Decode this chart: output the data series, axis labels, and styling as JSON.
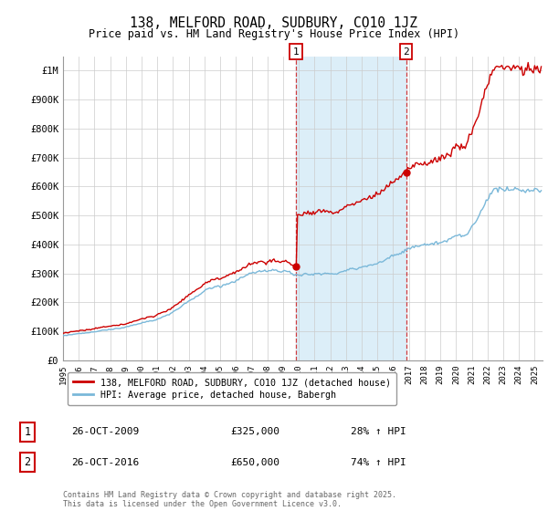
{
  "title": "138, MELFORD ROAD, SUDBURY, CO10 1JZ",
  "subtitle": "Price paid vs. HM Land Registry's House Price Index (HPI)",
  "ylabel_ticks": [
    "£0",
    "£100K",
    "£200K",
    "£300K",
    "£400K",
    "£500K",
    "£600K",
    "£700K",
    "£800K",
    "£900K",
    "£1M"
  ],
  "ytick_values": [
    0,
    100000,
    200000,
    300000,
    400000,
    500000,
    600000,
    700000,
    800000,
    900000,
    1000000
  ],
  "ylim": [
    0,
    1050000
  ],
  "xlim_start": 1995.0,
  "xlim_end": 2025.5,
  "grid_color": "#cccccc",
  "red_line_color": "#cc0000",
  "blue_line_color": "#7ab8d9",
  "shade_color": "#dceef8",
  "sale1_x": 2009.82,
  "sale1_y": 325000,
  "sale2_x": 2016.82,
  "sale2_y": 650000,
  "legend_line1": "138, MELFORD ROAD, SUDBURY, CO10 1JZ (detached house)",
  "legend_line2": "HPI: Average price, detached house, Babergh",
  "annotation1_date": "26-OCT-2009",
  "annotation1_price": "£325,000",
  "annotation1_hpi": "28% ↑ HPI",
  "annotation2_date": "26-OCT-2016",
  "annotation2_price": "£650,000",
  "annotation2_hpi": "74% ↑ HPI",
  "footnote": "Contains HM Land Registry data © Crown copyright and database right 2025.\nThis data is licensed under the Open Government Licence v3.0.",
  "xtick_years": [
    1995,
    1996,
    1997,
    1998,
    1999,
    2000,
    2001,
    2002,
    2003,
    2004,
    2005,
    2006,
    2007,
    2008,
    2009,
    2010,
    2011,
    2012,
    2013,
    2014,
    2015,
    2016,
    2017,
    2018,
    2019,
    2020,
    2021,
    2022,
    2023,
    2024,
    2025
  ]
}
